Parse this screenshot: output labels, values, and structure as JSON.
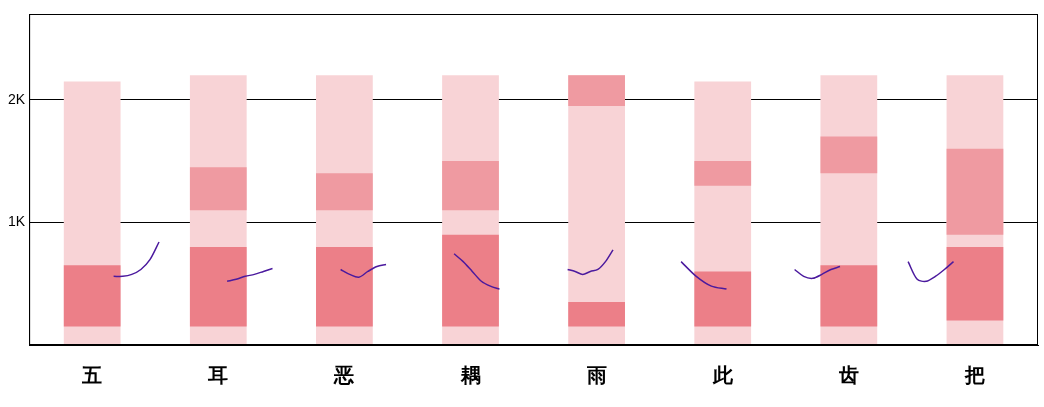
{
  "chart_data": {
    "type": "spectrogram",
    "categories": [
      "五",
      "耳",
      "恶",
      "耦",
      "雨",
      "此",
      "齿",
      "把"
    ],
    "ylim": [
      0,
      2700
    ],
    "yticks": [
      {
        "value": 1000,
        "label": "1K"
      },
      {
        "value": 2000,
        "label": "2K"
      }
    ],
    "grid": true,
    "series": [
      {
        "type": "bar",
        "color": "#f8d3d6",
        "values": [
          [
            0,
            2150
          ],
          [
            0,
            2200
          ],
          [
            0,
            2200
          ],
          [
            0,
            2200
          ],
          [
            0,
            2200
          ],
          [
            0,
            2150
          ],
          [
            0,
            2200
          ],
          [
            0,
            2200
          ]
        ]
      },
      {
        "type": "bar",
        "color": "#ec7f88",
        "values": [
          [
            150,
            650
          ],
          [
            150,
            800
          ],
          [
            150,
            800
          ],
          [
            150,
            900
          ],
          [
            150,
            350
          ],
          [
            150,
            600
          ],
          [
            150,
            650
          ],
          [
            200,
            800
          ]
        ]
      },
      {
        "type": "bar",
        "color": "#ef9aa1",
        "values": [
          null,
          [
            1100,
            1450
          ],
          [
            1100,
            1400
          ],
          [
            1100,
            1500
          ],
          [
            1950,
            2200
          ],
          [
            1300,
            1500
          ],
          [
            1400,
            1700
          ],
          [
            900,
            1600
          ]
        ]
      },
      {
        "type": "line",
        "color": "#4b1a9e",
        "values": [
          [
            560,
            560,
            576,
            616,
            696,
            840
          ],
          [
            520,
            536,
            560,
            576,
            600,
            624
          ],
          [
            616,
            576,
            552,
            600,
            640,
            656
          ],
          [
            744,
            680,
            600,
            520,
            480,
            456
          ],
          [
            616,
            600,
            576,
            600,
            616,
            680,
            776
          ],
          [
            680,
            560,
            480,
            456
          ],
          [
            616,
            560,
            544,
            576,
            616,
            640
          ],
          [
            680,
            536,
            520,
            560,
            616,
            680
          ]
        ]
      }
    ]
  }
}
